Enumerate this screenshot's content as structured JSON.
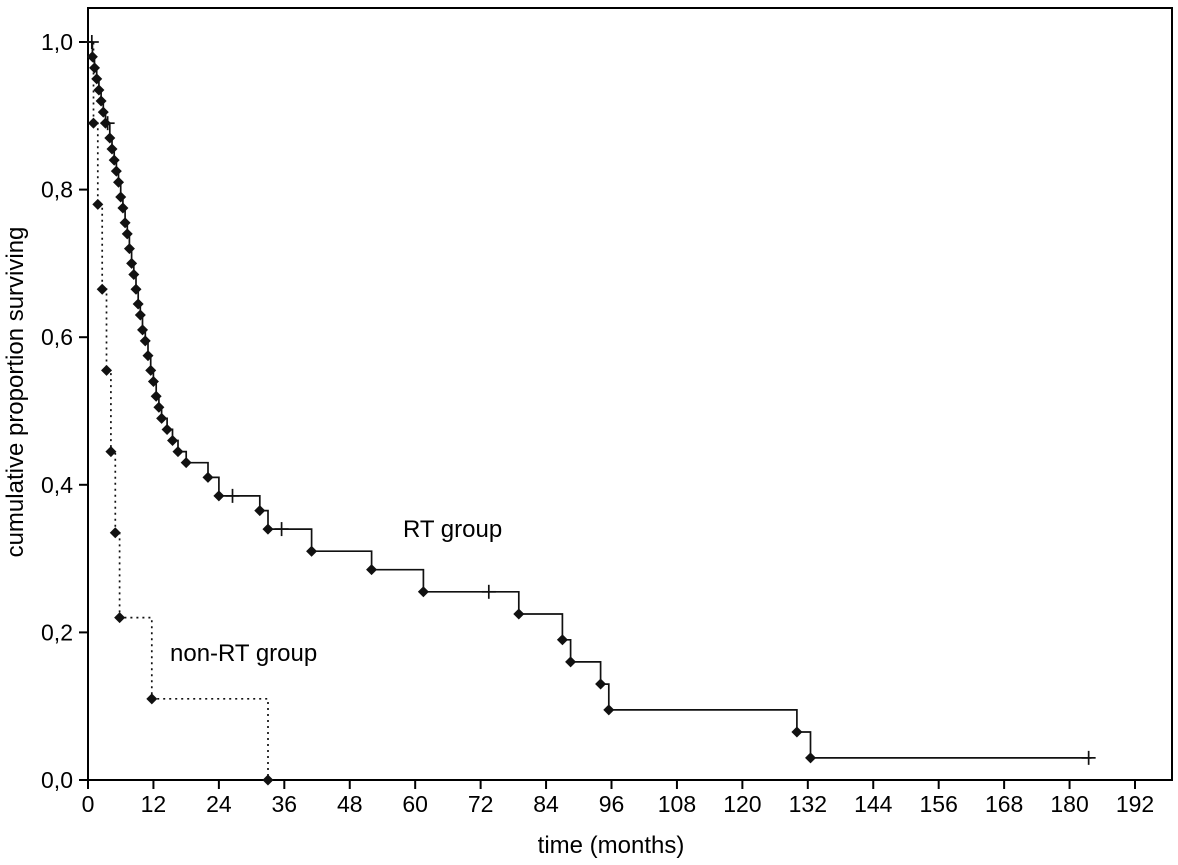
{
  "chart_data": {
    "type": "line",
    "subtype": "kaplan-meier-step",
    "title": "",
    "xlabel": "time (months)",
    "ylabel": "cumulative proportion surviving",
    "xlim": [
      0,
      192
    ],
    "ylim": [
      0.0,
      1.0
    ],
    "x_ticks": [
      0,
      12,
      24,
      36,
      48,
      60,
      72,
      84,
      96,
      108,
      120,
      132,
      144,
      156,
      168,
      180,
      192
    ],
    "y_ticks": [
      0.0,
      0.2,
      0.4,
      0.6,
      0.8,
      1.0
    ],
    "y_tick_labels": [
      "0,0",
      "0,2",
      "0,4",
      "0,6",
      "0,8",
      "1,0"
    ],
    "grid": false,
    "legend_position": "inline-annotations",
    "line_color": "#111111",
    "marker": "diamond",
    "censor_marker": "plus",
    "series": [
      {
        "name": "RT group",
        "line_style": "solid",
        "end": 184,
        "steps": [
          [
            0,
            1.0
          ],
          [
            0.8,
            0.98
          ],
          [
            1.2,
            0.965
          ],
          [
            1.6,
            0.95
          ],
          [
            2.0,
            0.935
          ],
          [
            2.4,
            0.92
          ],
          [
            2.8,
            0.905
          ],
          [
            3.2,
            0.89
          ],
          [
            4.0,
            0.87
          ],
          [
            4.4,
            0.855
          ],
          [
            4.8,
            0.84
          ],
          [
            5.2,
            0.825
          ],
          [
            5.6,
            0.81
          ],
          [
            6.0,
            0.79
          ],
          [
            6.4,
            0.775
          ],
          [
            6.8,
            0.755
          ],
          [
            7.2,
            0.74
          ],
          [
            7.6,
            0.72
          ],
          [
            8.0,
            0.7
          ],
          [
            8.4,
            0.685
          ],
          [
            8.8,
            0.665
          ],
          [
            9.2,
            0.645
          ],
          [
            9.6,
            0.63
          ],
          [
            10.0,
            0.61
          ],
          [
            10.5,
            0.595
          ],
          [
            11.0,
            0.575
          ],
          [
            11.5,
            0.555
          ],
          [
            12.0,
            0.54
          ],
          [
            12.5,
            0.52
          ],
          [
            13.0,
            0.505
          ],
          [
            13.5,
            0.49
          ],
          [
            14.5,
            0.475
          ],
          [
            15.5,
            0.46
          ],
          [
            16.5,
            0.445
          ],
          [
            18.0,
            0.43
          ],
          [
            22.0,
            0.41
          ],
          [
            24.0,
            0.385
          ],
          [
            31.5,
            0.365
          ],
          [
            33.0,
            0.34
          ],
          [
            41.0,
            0.31
          ],
          [
            52.0,
            0.285
          ],
          [
            61.5,
            0.255
          ],
          [
            79.0,
            0.225
          ],
          [
            87.0,
            0.19
          ],
          [
            88.5,
            0.16
          ],
          [
            94.0,
            0.13
          ],
          [
            95.5,
            0.095
          ],
          [
            130.0,
            0.065
          ],
          [
            132.5,
            0.03
          ]
        ],
        "censored": [
          [
            0.7,
            1.0
          ],
          [
            3.6,
            0.89
          ],
          [
            26.5,
            0.385
          ],
          [
            35.5,
            0.34
          ],
          [
            73.5,
            0.255
          ],
          [
            183.5,
            0.03
          ]
        ]
      },
      {
        "name": "non-RT group",
        "line_style": "dotted",
        "end": 33,
        "steps": [
          [
            0,
            1.0
          ],
          [
            1.0,
            0.89
          ],
          [
            1.8,
            0.78
          ],
          [
            2.6,
            0.665
          ],
          [
            3.4,
            0.555
          ],
          [
            4.2,
            0.445
          ],
          [
            5.0,
            0.335
          ],
          [
            5.8,
            0.22
          ],
          [
            11.7,
            0.11
          ],
          [
            33.0,
            0.0
          ]
        ],
        "censored": []
      }
    ]
  }
}
